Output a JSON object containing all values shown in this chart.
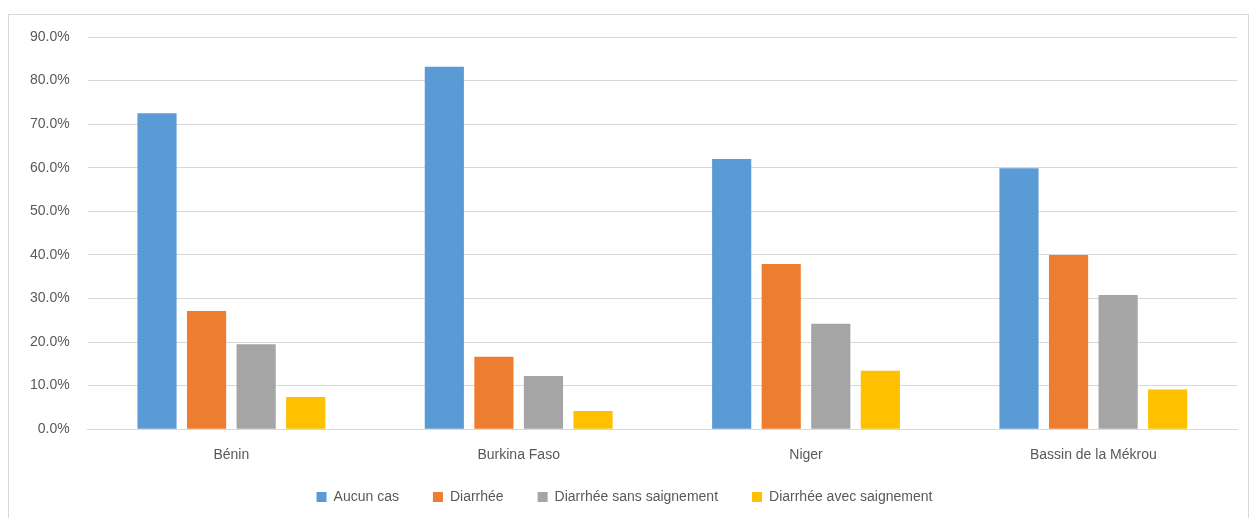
{
  "chart_data": {
    "type": "bar",
    "categories": [
      "Bénin",
      "Burkina Faso",
      "Niger",
      "Bassin de la Mékrou"
    ],
    "series": [
      {
        "name": "Aucun cas",
        "color": "#5b9bd5",
        "values": [
          72.5,
          83.2,
          62.0,
          59.9
        ]
      },
      {
        "name": "Diarrhée",
        "color": "#ed7d31",
        "values": [
          27.1,
          16.6,
          37.9,
          40.0
        ]
      },
      {
        "name": "Diarrhée sans saignement",
        "color": "#a5a5a5",
        "values": [
          19.5,
          12.2,
          24.2,
          30.8
        ]
      },
      {
        "name": "Diarrhée avec saignement",
        "color": "#ffc000",
        "values": [
          7.4,
          4.2,
          13.4,
          9.1
        ]
      }
    ],
    "ylim": [
      0,
      90
    ],
    "yticks": [
      {
        "value": 0,
        "label": "0.0%"
      },
      {
        "value": 10,
        "label": "10.0%"
      },
      {
        "value": 20,
        "label": "20.0%"
      },
      {
        "value": 30,
        "label": "30.0%"
      },
      {
        "value": 40,
        "label": "40.0%"
      },
      {
        "value": 50,
        "label": "50.0%"
      },
      {
        "value": 60,
        "label": "60.0%"
      },
      {
        "value": 70,
        "label": "70.0%"
      },
      {
        "value": 80,
        "label": "80.0%"
      },
      {
        "value": 90,
        "label": "90.0%"
      }
    ],
    "grid": "y",
    "legend": "bottom"
  }
}
